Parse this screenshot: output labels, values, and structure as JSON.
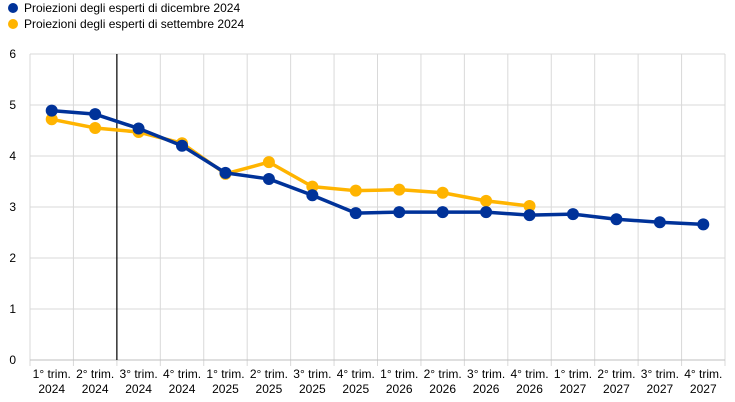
{
  "chart_data": {
    "type": "line",
    "title": "",
    "xlabel": "",
    "ylabel": "",
    "ylim": [
      0,
      6
    ],
    "yticks": [
      0,
      1,
      2,
      3,
      4,
      5,
      6
    ],
    "grid": true,
    "legend_position": "top-left",
    "categories": [
      [
        "1° trim.",
        "2024"
      ],
      [
        "2° trim.",
        "2024"
      ],
      [
        "3° trim.",
        "2024"
      ],
      [
        "4° trim.",
        "2024"
      ],
      [
        "1° trim.",
        "2025"
      ],
      [
        "2° trim.",
        "2025"
      ],
      [
        "3° trim.",
        "2025"
      ],
      [
        "4° trim.",
        "2025"
      ],
      [
        "1° trim.",
        "2026"
      ],
      [
        "2° trim.",
        "2026"
      ],
      [
        "3° trim.",
        "2026"
      ],
      [
        "4° trim.",
        "2026"
      ],
      [
        "1° trim.",
        "2027"
      ],
      [
        "2° trim.",
        "2027"
      ],
      [
        "3° trim.",
        "2027"
      ],
      [
        "4° trim.",
        "2027"
      ]
    ],
    "vertical_marker_after_index": 1,
    "series": [
      {
        "name": "Proiezioni degli esperti di settembre 2024",
        "color": "#FFB400",
        "values": [
          4.72,
          4.55,
          4.47,
          4.25,
          3.65,
          3.88,
          3.4,
          3.32,
          3.34,
          3.28,
          3.12,
          3.02,
          null,
          null,
          null,
          null
        ]
      },
      {
        "name": "Proiezioni degli esperti di dicembre 2024",
        "color": "#003299",
        "values": [
          4.89,
          4.82,
          4.54,
          4.2,
          3.67,
          3.55,
          3.23,
          2.88,
          2.9,
          2.9,
          2.9,
          2.84,
          2.86,
          2.76,
          2.7,
          2.66
        ]
      }
    ]
  },
  "legend": [
    {
      "label": "Proiezioni degli esperti di dicembre 2024",
      "color": "#003299"
    },
    {
      "label": "Proiezioni degli esperti di settembre 2024",
      "color": "#FFB400"
    }
  ]
}
